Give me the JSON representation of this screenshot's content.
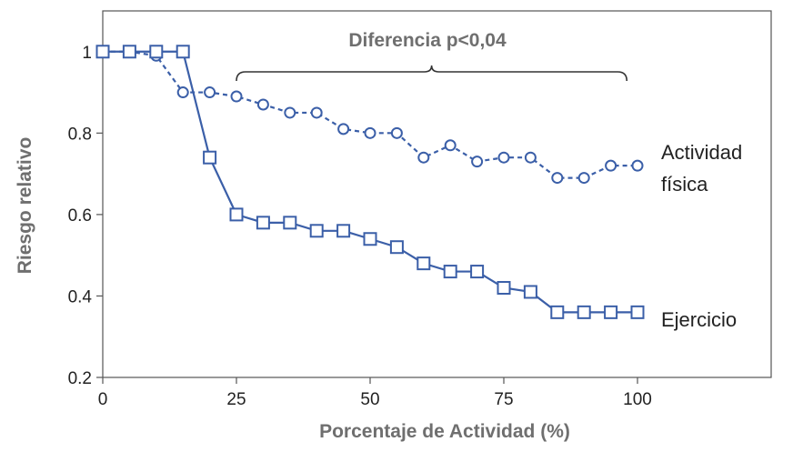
{
  "chart_data": {
    "type": "line",
    "xlabel": "Porcentaje de Actividad (%)",
    "ylabel": "Riesgo relativo",
    "xlim": [
      0,
      125
    ],
    "ylim": [
      0.2,
      1.1
    ],
    "xticks": [
      0,
      25,
      50,
      75,
      100
    ],
    "xtick_labels": [
      "0",
      "25",
      "50",
      "75",
      "100"
    ],
    "yticks": [
      0.2,
      0.4,
      0.6,
      0.8,
      1
    ],
    "ytick_labels": [
      "0.2",
      "0.4",
      "0.6",
      "0.8",
      "1"
    ],
    "grid": false,
    "annotation": {
      "text": "Diferencia p<0,04",
      "x_range": [
        25,
        98
      ]
    },
    "series": [
      {
        "name": "Actividad física",
        "label_lines": [
          "Actividad",
          "física"
        ],
        "marker": "circle",
        "line_style": "dashed",
        "color": "#3b5fa8",
        "x": [
          0,
          5,
          10,
          15,
          20,
          25,
          30,
          35,
          40,
          45,
          50,
          55,
          60,
          65,
          70,
          75,
          80,
          85,
          90,
          95,
          100
        ],
        "y": [
          1.0,
          1.0,
          0.99,
          0.9,
          0.9,
          0.89,
          0.87,
          0.85,
          0.85,
          0.81,
          0.8,
          0.8,
          0.74,
          0.77,
          0.73,
          0.74,
          0.74,
          0.69,
          0.69,
          0.72,
          0.72
        ]
      },
      {
        "name": "Ejercicio",
        "label_lines": [
          "Ejercicio"
        ],
        "marker": "square",
        "line_style": "solid",
        "color": "#3b5fa8",
        "x": [
          0,
          5,
          10,
          15,
          20,
          25,
          30,
          35,
          40,
          45,
          50,
          55,
          60,
          65,
          70,
          75,
          80,
          85,
          90,
          95,
          100
        ],
        "y": [
          1.0,
          1.0,
          1.0,
          1.0,
          0.74,
          0.6,
          0.58,
          0.58,
          0.56,
          0.56,
          0.54,
          0.52,
          0.48,
          0.46,
          0.46,
          0.42,
          0.41,
          0.36,
          0.36,
          0.36,
          0.36
        ]
      }
    ]
  }
}
